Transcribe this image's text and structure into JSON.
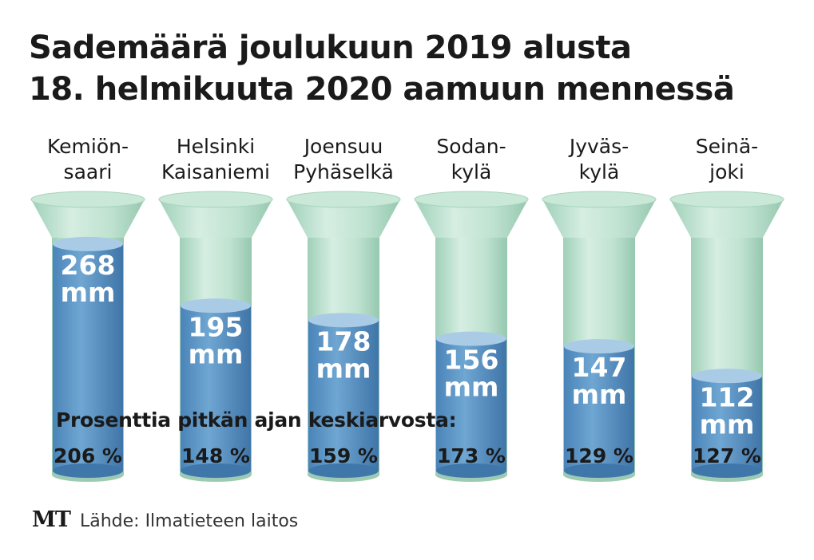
{
  "title": {
    "line1": "Sademäärä joulukuun 2019 alusta",
    "line2": "18. helmikuuta 2020 aamuun mennessä"
  },
  "percent_caption": "Prosenttia pitkän ajan keskiarvosta:",
  "footer": {
    "logo": "MT",
    "source": "Lähde: Ilmatieteen laitos"
  },
  "colors": {
    "tube": "#b9dfcc",
    "tube_dark": "#9ccab2",
    "water": "#5b93c4",
    "water_dark": "#3f77ab",
    "water_top": "#a9cbe6"
  },
  "chart_data": {
    "type": "bar",
    "unit": "mm",
    "categories": [
      [
        "Kemiön-",
        "saari"
      ],
      [
        "Helsinki",
        "Kaisaniemi"
      ],
      [
        "Joensuu",
        "Pyhäselkä"
      ],
      [
        "Sodan-",
        "kylä"
      ],
      [
        "Jyväs-",
        "kylä"
      ],
      [
        "Seinä-",
        "joki"
      ]
    ],
    "series": [
      {
        "values": [
          268,
          195,
          178,
          156,
          147,
          112
        ],
        "value_labels": [
          [
            "268",
            "mm"
          ],
          [
            "195",
            "mm"
          ],
          [
            "178",
            "mm"
          ],
          [
            "156",
            "mm"
          ],
          [
            "147",
            "mm"
          ],
          [
            "112",
            "mm"
          ]
        ]
      }
    ],
    "percent_of_long_term_average": [
      206,
      148,
      159,
      173,
      129,
      127
    ],
    "percent_labels": [
      "206 %",
      "148 %",
      "159 %",
      "173 %",
      "129 %",
      "127 %"
    ],
    "grid": false
  }
}
